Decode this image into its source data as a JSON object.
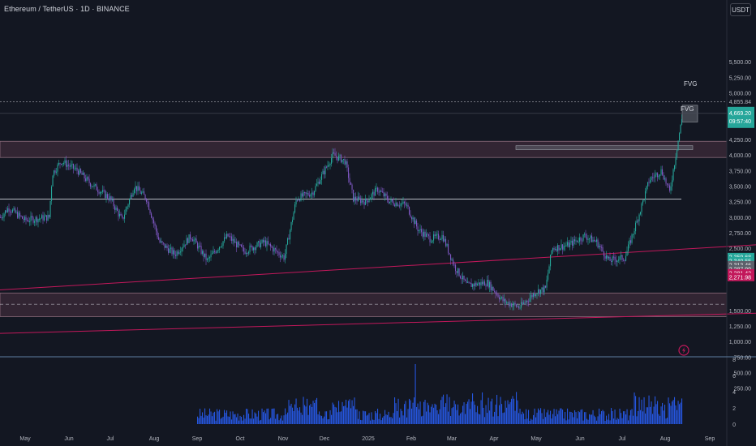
{
  "header": {
    "symbol_title": "Ethereum / TetherUS · 1D · BINANCE",
    "currency_button": "USDT"
  },
  "colors": {
    "background": "#131722",
    "up": "#26a69a",
    "down": "#7e57c2",
    "zone": "#3d2b3a",
    "zone_border": "#8a6a7a",
    "trendline": "#c2185b",
    "hline": "#d1d4dc",
    "volume": "#2962ff"
  },
  "chart_data": {
    "type": "candlestick",
    "title": "Ethereum / TetherUS · 1D · BINANCE",
    "ylim": [
      0,
      6000
    ],
    "y_ticks": [
      "5,500.00",
      "5,250.00",
      "5,000.00",
      "4,250.00",
      "4,000.00",
      "3,750.00",
      "3,500.00",
      "3,250.00",
      "3,000.00",
      "2,750.00",
      "2,500.00",
      "1,500.00",
      "1,250.00",
      "1,000.00",
      "750.00",
      "500.00",
      "250.00"
    ],
    "x_ticks": [
      "May",
      "Jun",
      "Jul",
      "Aug",
      "Sep",
      "Oct",
      "Nov",
      "Dec",
      "2025",
      "Feb",
      "Mar",
      "Apr",
      "May",
      "Jun",
      "Jul",
      "Aug",
      "Sep"
    ],
    "price_path": [
      [
        0,
        3000
      ],
      [
        10,
        3150
      ],
      [
        30,
        2950
      ],
      [
        60,
        3000
      ],
      [
        64,
        3700
      ],
      [
        75,
        3900
      ],
      [
        95,
        3750
      ],
      [
        110,
        3550
      ],
      [
        135,
        3300
      ],
      [
        150,
        2950
      ],
      [
        165,
        3500
      ],
      [
        180,
        3300
      ],
      [
        196,
        2600
      ],
      [
        215,
        2400
      ],
      [
        235,
        2700
      ],
      [
        255,
        2300
      ],
      [
        280,
        2700
      ],
      [
        300,
        2450
      ],
      [
        325,
        2600
      ],
      [
        350,
        2350
      ],
      [
        365,
        3300
      ],
      [
        385,
        3400
      ],
      [
        410,
        4000
      ],
      [
        425,
        3900
      ],
      [
        435,
        3300
      ],
      [
        450,
        3250
      ],
      [
        465,
        3450
      ],
      [
        480,
        3250
      ],
      [
        500,
        3200
      ],
      [
        515,
        2800
      ],
      [
        530,
        2650
      ],
      [
        545,
        2700
      ],
      [
        560,
        2200
      ],
      [
        575,
        1900
      ],
      [
        600,
        1950
      ],
      [
        620,
        1650
      ],
      [
        640,
        1550
      ],
      [
        660,
        1800
      ],
      [
        672,
        1850
      ],
      [
        680,
        2500
      ],
      [
        700,
        2550
      ],
      [
        720,
        2700
      ],
      [
        735,
        2600
      ],
      [
        750,
        2300
      ],
      [
        770,
        2350
      ],
      [
        785,
        2950
      ],
      [
        800,
        3600
      ],
      [
        815,
        3750
      ],
      [
        825,
        3400
      ],
      [
        835,
        4200
      ],
      [
        841,
        4650
      ]
    ],
    "volume_ylim": [
      0,
      8
    ],
    "volume_ticks": [
      "8",
      "6",
      "4",
      "2",
      "0"
    ],
    "levels": {
      "current_price": "4,669.20",
      "countdown": "09:57:40",
      "high_dashed": "4,855.84",
      "price_labels": [
        {
          "text": "2,359.68",
          "color": "#26a69a",
          "price": 2360
        },
        {
          "text": "2,340.55",
          "color": "#26a69a",
          "price": 2295
        },
        {
          "text": "2,313.46",
          "color": "#5d606b",
          "price": 2230
        },
        {
          "text": "2,287.99",
          "color": "#5d606b",
          "price": 2165
        },
        {
          "text": "2,281.42",
          "color": "#c2185b",
          "price": 2100
        },
        {
          "text": "2,271.98",
          "color": "#c2185b",
          "price": 2035
        }
      ]
    },
    "annotations": [
      "FVG",
      "FVG"
    ]
  }
}
